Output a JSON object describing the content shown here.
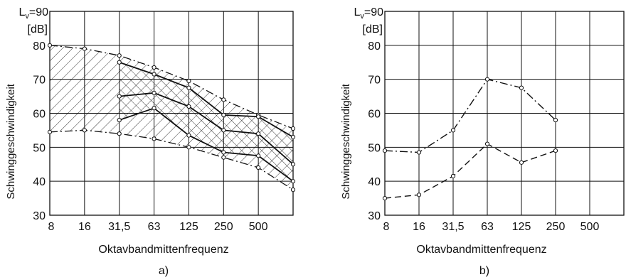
{
  "chart_data": [
    {
      "type": "line",
      "panel_label": "a)",
      "xlabel": "Oktavbandmittenfrequenz",
      "ylabel": "Schwinggeschwindigkeit",
      "ylabel_top": "L",
      "ylabel_top_sub": "v",
      "ylabel_top_value": "=90",
      "yunit": "[dB]",
      "categories": [
        "8",
        "16",
        "31,5",
        "63",
        "125",
        "250",
        "500",
        ""
      ],
      "ylim": [
        30,
        90
      ],
      "yticks": [
        "30",
        "40",
        "50",
        "60",
        "70",
        "80"
      ],
      "grid": true,
      "upper_envelope": {
        "x": [
          0,
          1,
          2,
          3,
          4,
          5,
          6,
          7
        ],
        "values": [
          80,
          79,
          77,
          73.5,
          69.5,
          64,
          59.5,
          55.5
        ],
        "dash": "dash-dot"
      },
      "lower_envelope": {
        "x": [
          0,
          1,
          2,
          3,
          4,
          5,
          6,
          7
        ],
        "values": [
          54.5,
          55,
          54,
          52.5,
          50,
          47,
          44,
          37.5
        ],
        "dash": "dash-dot"
      },
      "inner_band": {
        "upper": {
          "x": [
            2,
            3,
            4,
            5,
            6,
            7
          ],
          "values": [
            75,
            71.5,
            67.5,
            59.5,
            59,
            53
          ]
        },
        "lower": {
          "x": [
            2,
            3,
            4,
            5,
            6,
            7
          ],
          "values": [
            58,
            61.5,
            53.5,
            48.5,
            47.5,
            40
          ]
        }
      },
      "series": [
        {
          "x": [
            2,
            3,
            4,
            5,
            6,
            7
          ],
          "values": [
            75,
            71.5,
            67.5,
            59.5,
            59,
            53
          ]
        },
        {
          "x": [
            2,
            3,
            4,
            5,
            6,
            7
          ],
          "values": [
            65,
            66,
            62,
            55,
            54,
            45
          ]
        },
        {
          "x": [
            2,
            3,
            4,
            5,
            6,
            7
          ],
          "values": [
            58,
            61.5,
            53.5,
            48.5,
            47.5,
            40
          ]
        }
      ]
    },
    {
      "type": "line",
      "panel_label": "b)",
      "xlabel": "Oktavbandmittenfrequenz",
      "ylabel": "Schwinggeschwindigkeit",
      "ylabel_top": "L",
      "ylabel_top_sub": "v",
      "ylabel_top_value": "=90",
      "yunit": "[dB]",
      "categories": [
        "8",
        "16",
        "31,5",
        "63",
        "125",
        "250",
        "500",
        ""
      ],
      "ylim": [
        30,
        90
      ],
      "yticks": [
        "30",
        "40",
        "50",
        "60",
        "70",
        "80"
      ],
      "grid": true,
      "series": [
        {
          "dash": "dash-dot",
          "x": [
            0,
            1,
            2,
            3,
            4,
            5
          ],
          "values": [
            49,
            48.5,
            55,
            70,
            67.5,
            58
          ]
        },
        {
          "dash": "dash",
          "x": [
            0,
            1,
            2,
            3,
            4,
            5
          ],
          "values": [
            35,
            36,
            41.5,
            51,
            45.5,
            49
          ]
        }
      ]
    }
  ]
}
